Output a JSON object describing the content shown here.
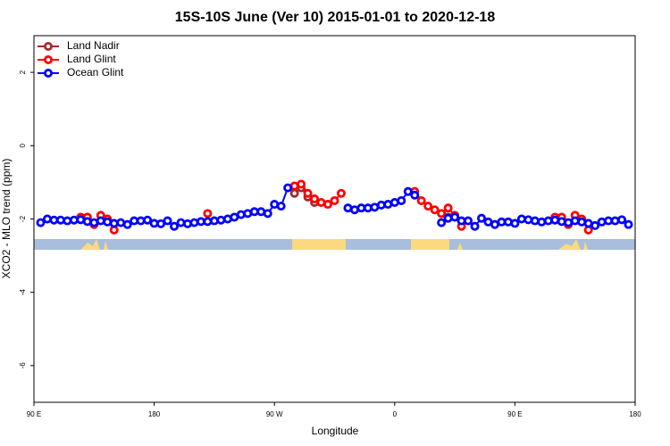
{
  "chart_data": {
    "type": "line",
    "title": "15S-10S June (Ver 10)   2015-01-01 to 2020-12-18",
    "x_label": "Longitude",
    "y_label": "XCO2 - MLO trend (ppm)",
    "xlim": [
      90,
      540
    ],
    "ylim": [
      -7,
      3
    ],
    "xticks": [
      {
        "value": 90,
        "label": "90 E"
      },
      {
        "value": 180,
        "label": "180"
      },
      {
        "value": 270,
        "label": "90 W"
      },
      {
        "value": 360,
        "label": "0"
      },
      {
        "value": 450,
        "label": "90 E"
      },
      {
        "value": 540,
        "label": "180"
      }
    ],
    "yticks": [
      -6,
      -4,
      -2,
      0,
      2
    ],
    "legend": "top-left",
    "x": [
      95,
      100,
      105,
      110,
      115,
      120,
      125,
      130,
      135,
      140,
      145,
      150,
      155,
      160,
      165,
      170,
      175,
      180,
      185,
      190,
      195,
      200,
      205,
      210,
      215,
      220,
      225,
      230,
      235,
      240,
      245,
      250,
      255,
      260,
      265,
      270,
      275,
      280,
      285,
      290,
      295,
      300,
      305,
      310,
      315,
      320,
      325,
      330,
      335,
      340,
      345,
      350,
      355,
      360,
      365,
      370,
      375,
      380,
      385,
      390,
      395,
      400,
      405,
      410,
      415,
      420,
      425,
      430,
      435,
      440,
      445,
      450,
      455,
      460,
      465,
      470,
      475,
      480,
      485,
      490,
      495,
      500,
      505,
      510,
      515,
      520,
      525,
      530,
      535
    ],
    "series": [
      {
        "name": "Land Nadir",
        "color": "#a52a2a",
        "values": [
          null,
          null,
          null,
          null,
          null,
          null,
          null,
          -1.95,
          null,
          null,
          null,
          null,
          null,
          null,
          null,
          null,
          null,
          null,
          null,
          null,
          null,
          null,
          null,
          null,
          null,
          null,
          null,
          null,
          null,
          null,
          null,
          null,
          null,
          null,
          null,
          null,
          null,
          null,
          -1.3,
          -1.15,
          -1.4,
          -1.55,
          null,
          null,
          null,
          null,
          null,
          null,
          null,
          null,
          null,
          null,
          null,
          null,
          null,
          null,
          null,
          null,
          null,
          null,
          null,
          -1.95,
          null,
          null,
          null,
          null,
          null,
          null,
          null,
          null,
          null,
          null,
          null,
          null,
          null,
          null,
          null,
          null,
          -2.0,
          null,
          null,
          null,
          null,
          null,
          null,
          null,
          null,
          null,
          null
        ]
      },
      {
        "name": "Land Glint",
        "color": "#ff0000",
        "values": [
          null,
          null,
          null,
          null,
          null,
          null,
          -1.95,
          -1.95,
          -2.15,
          -1.9,
          -2.0,
          -2.3,
          null,
          null,
          null,
          null,
          null,
          null,
          null,
          null,
          null,
          null,
          null,
          null,
          null,
          -1.85,
          null,
          null,
          null,
          null,
          null,
          null,
          null,
          null,
          null,
          null,
          null,
          null,
          -1.1,
          -1.05,
          -1.3,
          -1.45,
          -1.55,
          -1.6,
          -1.5,
          -1.3,
          null,
          null,
          null,
          null,
          null,
          null,
          null,
          null,
          null,
          null,
          -1.25,
          -1.5,
          -1.65,
          -1.75,
          -1.85,
          -1.7,
          -1.9,
          -2.2,
          null,
          null,
          null,
          null,
          null,
          null,
          null,
          null,
          null,
          null,
          null,
          null,
          null,
          -1.95,
          -1.95,
          -2.15,
          -1.9,
          -2.0,
          -2.3,
          null,
          null,
          null,
          null,
          null,
          null
        ]
      },
      {
        "name": "Ocean Glint",
        "color": "#0000ff",
        "values": [
          -2.1,
          -2.0,
          -2.03,
          -2.03,
          -2.05,
          -2.03,
          -2.02,
          -2.07,
          -2.1,
          -2.05,
          -2.08,
          -2.12,
          -2.1,
          -2.15,
          -2.05,
          -2.05,
          -2.03,
          -2.12,
          -2.13,
          -2.05,
          -2.2,
          -2.1,
          -2.13,
          -2.1,
          -2.07,
          -2.07,
          -2.05,
          -2.03,
          -2.0,
          -1.95,
          -1.88,
          -1.85,
          -1.8,
          -1.8,
          -1.85,
          -1.6,
          -1.65,
          -1.15,
          null,
          null,
          null,
          null,
          null,
          null,
          null,
          null,
          -1.7,
          -1.75,
          -1.7,
          -1.7,
          -1.68,
          -1.62,
          -1.6,
          -1.55,
          -1.5,
          -1.25,
          -1.35,
          null,
          null,
          null,
          -2.1,
          -1.98,
          -1.95,
          -2.05,
          -2.05,
          -2.2,
          -1.98,
          -2.08,
          -2.15,
          -2.08,
          -2.08,
          -2.12,
          -2.0,
          -2.02,
          -2.05,
          -2.08,
          -2.05,
          -2.03,
          -2.07,
          -2.1,
          -2.05,
          -2.08,
          -2.12,
          -2.18,
          -2.08,
          -2.05,
          -2.05,
          -2.02,
          -2.15
        ]
      }
    ]
  }
}
